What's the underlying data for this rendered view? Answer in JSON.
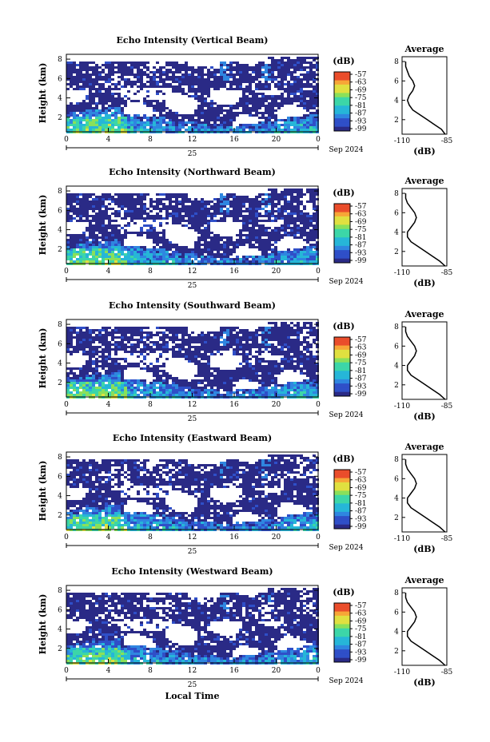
{
  "figure": {
    "xlabel": "Local Time",
    "colorbar_ticks": [
      "-57",
      "-63",
      "-69",
      "-75",
      "-81",
      "-87",
      "-93",
      "-99"
    ],
    "colorbar_unit": "(dB)",
    "average_title": "Average",
    "average_xlabel": "(dB)",
    "average_xticks": [
      "-110",
      "-85"
    ],
    "height_label": "Height (km)",
    "y_ticks": [
      "2",
      "4",
      "6",
      "8"
    ],
    "x_ticks": [
      "0",
      "4",
      "8",
      "12",
      "16",
      "20",
      "0"
    ],
    "day_label": "25",
    "month_year": "Sep 2024",
    "colors": {
      "background_echo": "#3a3e8c",
      "colormap": [
        "#2a2a86",
        "#2f4fc8",
        "#2f86e0",
        "#26b6d8",
        "#3cd6a8",
        "#8ae05a",
        "#e0e040",
        "#f7a637",
        "#ea4d2b"
      ]
    }
  },
  "chart_data": [
    {
      "type": "heatmap",
      "title": "Echo Intensity (Vertical Beam)",
      "xlabel": "",
      "ylabel": "Height (km)",
      "xlim": [
        0,
        24
      ],
      "ylim": [
        0.5,
        8.5
      ],
      "clim": [
        -99,
        -57
      ],
      "x_ticks": [
        0,
        4,
        8,
        12,
        16,
        20,
        24
      ],
      "y_ticks": [
        2,
        4,
        6,
        8
      ],
      "description_values": {
        "boundary_layer_top_km": 2.5,
        "low_level_peak_db": -87,
        "upper_echo_db": -96
      },
      "average_profile": {
        "title": "Average",
        "xlabel": "(dB)",
        "xlim": [
          -110,
          -85
        ],
        "height_km": [
          0.5,
          1.0,
          1.5,
          2.0,
          2.5,
          3.0,
          3.5,
          4.0,
          4.5,
          5.0,
          5.5,
          6.0,
          6.5,
          7.0,
          7.5,
          8.0
        ],
        "value_db": [
          -86,
          -88,
          -92,
          -96,
          -100,
          -104,
          -106,
          -107,
          -106,
          -104,
          -103,
          -104,
          -106,
          -107,
          -108,
          -108
        ]
      }
    },
    {
      "type": "heatmap",
      "title": "Echo Intensity (Northward Beam)",
      "xlabel": "",
      "ylabel": "Height (km)",
      "xlim": [
        0,
        24
      ],
      "ylim": [
        0.5,
        8.5
      ],
      "clim": [
        -99,
        -57
      ],
      "x_ticks": [
        0,
        4,
        8,
        12,
        16,
        20,
        24
      ],
      "y_ticks": [
        2,
        4,
        6,
        8
      ],
      "description_values": {
        "boundary_layer_top_km": 2.5,
        "low_level_peak_db": -87,
        "upper_echo_db": -96
      },
      "average_profile": {
        "title": "Average",
        "xlabel": "(dB)",
        "xlim": [
          -110,
          -85
        ],
        "height_km": [
          0.5,
          1.0,
          1.5,
          2.0,
          2.5,
          3.0,
          3.5,
          4.0,
          4.5,
          5.0,
          5.5,
          6.0,
          6.5,
          7.0,
          7.5,
          8.0
        ],
        "value_db": [
          -86,
          -89,
          -93,
          -97,
          -101,
          -105,
          -107,
          -107,
          -105,
          -103,
          -102,
          -103,
          -105,
          -107,
          -108,
          -108
        ]
      }
    },
    {
      "type": "heatmap",
      "title": "Echo Intensity (Southward Beam)",
      "xlabel": "",
      "ylabel": "Height (km)",
      "xlim": [
        0,
        24
      ],
      "ylim": [
        0.5,
        8.5
      ],
      "clim": [
        -99,
        -57
      ],
      "x_ticks": [
        0,
        4,
        8,
        12,
        16,
        20,
        24
      ],
      "y_ticks": [
        2,
        4,
        6,
        8
      ],
      "description_values": {
        "boundary_layer_top_km": 2.5,
        "low_level_peak_db": -87,
        "upper_echo_db": -96
      },
      "average_profile": {
        "title": "Average",
        "xlabel": "(dB)",
        "xlim": [
          -110,
          -85
        ],
        "height_km": [
          0.5,
          1.0,
          1.5,
          2.0,
          2.5,
          3.0,
          3.5,
          4.0,
          4.5,
          5.0,
          5.5,
          6.0,
          6.5,
          7.0,
          7.5,
          8.0
        ],
        "value_db": [
          -86,
          -89,
          -93,
          -97,
          -101,
          -105,
          -107,
          -107,
          -105,
          -103,
          -102,
          -103,
          -105,
          -107,
          -108,
          -108
        ]
      }
    },
    {
      "type": "heatmap",
      "title": "Echo Intensity (Eastward Beam)",
      "xlabel": "",
      "ylabel": "Height (km)",
      "xlim": [
        0,
        24
      ],
      "ylim": [
        0.5,
        8.5
      ],
      "clim": [
        -99,
        -57
      ],
      "x_ticks": [
        0,
        4,
        8,
        12,
        16,
        20,
        24
      ],
      "y_ticks": [
        2,
        4,
        6,
        8
      ],
      "description_values": {
        "boundary_layer_top_km": 2.5,
        "low_level_peak_db": -87,
        "upper_echo_db": -96
      },
      "average_profile": {
        "title": "Average",
        "xlabel": "(dB)",
        "xlim": [
          -110,
          -85
        ],
        "height_km": [
          0.5,
          1.0,
          1.5,
          2.0,
          2.5,
          3.0,
          3.5,
          4.0,
          4.5,
          5.0,
          5.5,
          6.0,
          6.5,
          7.0,
          7.5,
          8.0
        ],
        "value_db": [
          -86,
          -89,
          -93,
          -97,
          -101,
          -105,
          -107,
          -107,
          -105,
          -103,
          -102,
          -103,
          -105,
          -107,
          -108,
          -108
        ]
      }
    },
    {
      "type": "heatmap",
      "title": "Echo Intensity (Westward Beam)",
      "xlabel": "Local Time",
      "ylabel": "Height (km)",
      "xlim": [
        0,
        24
      ],
      "ylim": [
        0.5,
        8.5
      ],
      "clim": [
        -99,
        -57
      ],
      "x_ticks": [
        0,
        4,
        8,
        12,
        16,
        20,
        24
      ],
      "y_ticks": [
        2,
        4,
        6,
        8
      ],
      "description_values": {
        "boundary_layer_top_km": 2.5,
        "low_level_peak_db": -87,
        "upper_echo_db": -96
      },
      "average_profile": {
        "title": "Average",
        "xlabel": "(dB)",
        "xlim": [
          -110,
          -85
        ],
        "height_km": [
          0.5,
          1.0,
          1.5,
          2.0,
          2.5,
          3.0,
          3.5,
          4.0,
          4.5,
          5.0,
          5.5,
          6.0,
          6.5,
          7.0,
          7.5,
          8.0
        ],
        "value_db": [
          -86,
          -89,
          -93,
          -97,
          -101,
          -105,
          -107,
          -107,
          -105,
          -103,
          -102,
          -103,
          -105,
          -107,
          -108,
          -108
        ]
      }
    }
  ]
}
